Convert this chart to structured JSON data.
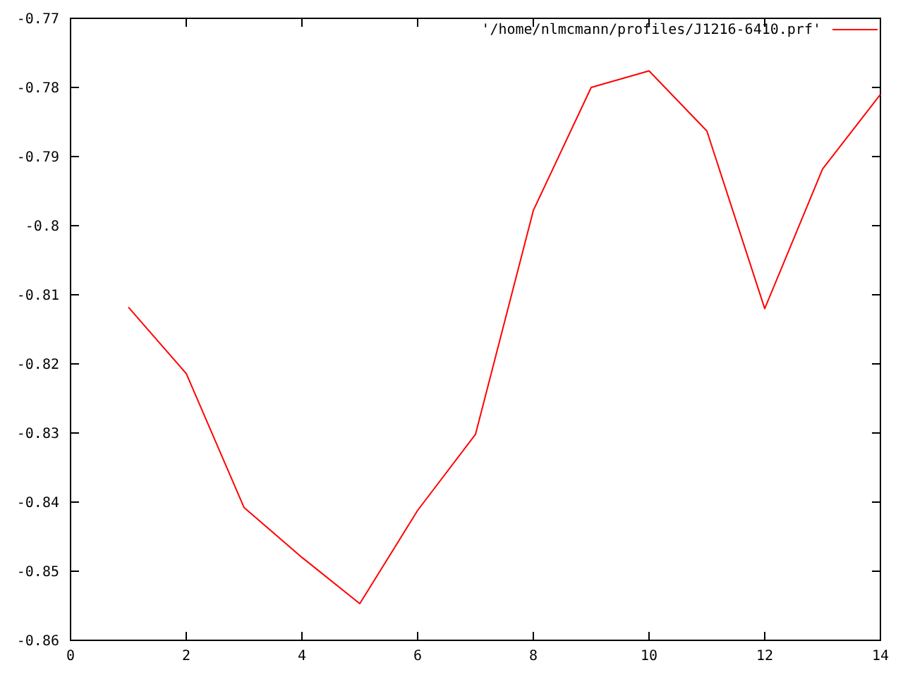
{
  "chart_data": {
    "type": "line",
    "x": [
      1,
      2,
      3,
      4,
      5,
      6,
      7,
      8,
      9,
      10,
      11,
      12,
      13,
      14
    ],
    "series": [
      {
        "name": "'/home/nlmcmann/profiles/J1216-6410.prf'",
        "color": "#ff0000",
        "values": [
          -0.8118,
          -0.8214,
          -0.8408,
          -0.848,
          -0.8547,
          -0.8412,
          -0.8302,
          -0.7978,
          -0.78,
          -0.7776,
          -0.7863,
          -0.812,
          -0.7918,
          -0.781
        ]
      }
    ],
    "xlim": [
      0,
      14
    ],
    "xticks": [
      0,
      2,
      4,
      6,
      8,
      10,
      12,
      14
    ],
    "ylim": [
      -0.86,
      -0.77
    ],
    "yticks": [
      -0.86,
      -0.85,
      -0.84,
      -0.83,
      -0.82,
      -0.81,
      -0.8,
      -0.79,
      -0.78,
      -0.77
    ],
    "legend": "top right",
    "grid": false,
    "marker": "none",
    "line_style": "solid"
  }
}
